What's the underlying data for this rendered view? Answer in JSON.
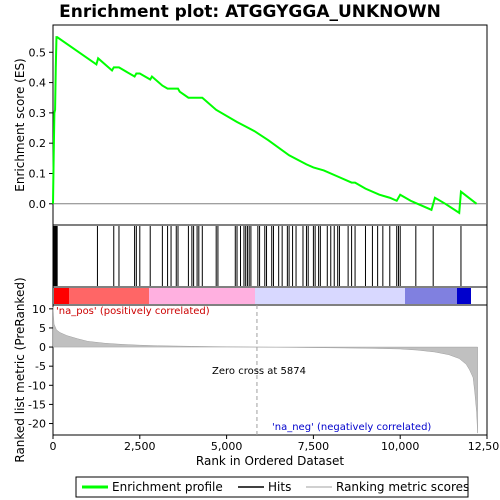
{
  "chart_data": [
    {
      "panel": "enrichment-score",
      "type": "line",
      "title": "Enrichment plot: ATGGYGGA_UNKNOWN",
      "ylabel": "Enrichment score (ES)",
      "xlim": [
        0,
        12500
      ],
      "ylim": [
        -0.07,
        0.59
      ],
      "yticks": [
        0.0,
        0.1,
        0.2,
        0.3,
        0.4,
        0.5
      ],
      "ytick_labels": [
        "0.0",
        "0.1",
        "0.2",
        "0.3",
        "0.4",
        "0.5"
      ],
      "line_color": "#00ff00",
      "series": [
        {
          "name": "Enrichment profile",
          "x": [
            0,
            20,
            40,
            60,
            80,
            100,
            120,
            1250,
            1300,
            1700,
            1750,
            1900,
            2350,
            2400,
            2500,
            2800,
            2850,
            3150,
            3300,
            3600,
            3650,
            3900,
            4100,
            4300,
            4700,
            5300,
            5800,
            6200,
            6800,
            7300,
            7500,
            7800,
            8200,
            8600,
            8700,
            9000,
            9400,
            9700,
            9900,
            10000,
            10300,
            10500,
            10900,
            11000,
            11300,
            11700,
            11750,
            12200
          ],
          "y": [
            0.0,
            0.16,
            0.3,
            0.31,
            0.45,
            0.55,
            0.55,
            0.46,
            0.48,
            0.44,
            0.45,
            0.45,
            0.42,
            0.43,
            0.43,
            0.41,
            0.42,
            0.39,
            0.38,
            0.38,
            0.37,
            0.35,
            0.35,
            0.35,
            0.31,
            0.27,
            0.24,
            0.21,
            0.16,
            0.13,
            0.12,
            0.11,
            0.09,
            0.07,
            0.07,
            0.05,
            0.03,
            0.02,
            0.01,
            0.03,
            0.01,
            0.0,
            -0.02,
            0.02,
            0.0,
            -0.03,
            0.04,
            0.0
          ]
        }
      ]
    },
    {
      "panel": "hits",
      "type": "scatter",
      "series": [
        {
          "name": "Hits",
          "x": [
            20,
            40,
            60,
            80,
            100,
            120,
            1280,
            1750,
            1900,
            2350,
            2400,
            2500,
            2800,
            3150,
            3300,
            3400,
            3550,
            3600,
            3900,
            4000,
            4050,
            4150,
            4200,
            4300,
            4700,
            4750,
            5250,
            5300,
            5400,
            5500,
            5550,
            5600,
            5650,
            5700,
            5900,
            5950,
            6100,
            6150,
            6300,
            6350,
            6500,
            6600,
            6750,
            6800,
            6900,
            7000,
            7200,
            7300,
            7350,
            7500,
            7550,
            7650,
            7700,
            7900,
            8000,
            8100,
            8200,
            8250,
            8500,
            8600,
            8700,
            9000,
            9200,
            9350,
            9500,
            9700,
            9900,
            9950,
            10000,
            10450,
            10950,
            11750
          ]
        }
      ]
    },
    {
      "panel": "ranked-list-metric",
      "type": "area",
      "ylabel": "Ranked list metric (PreRanked)",
      "xlabel": "Rank in Ordered Dataset",
      "xlim": [
        0,
        12500
      ],
      "ylim": [
        -23,
        11
      ],
      "yticks": [
        10,
        5,
        0,
        -5,
        -10,
        -15,
        -20
      ],
      "ytick_labels": [
        "10",
        "5",
        "0",
        "-5",
        "-10",
        "-15",
        "-20"
      ],
      "xticks": [
        0,
        2500,
        5000,
        7500,
        10000,
        12500
      ],
      "xtick_labels": [
        "0",
        "2,500",
        "5,000",
        "7,500",
        "10,000",
        "12,500"
      ],
      "zero_cross": 5874,
      "series": [
        {
          "name": "Ranking metric scores",
          "x": [
            0,
            30,
            100,
            200,
            400,
            700,
            1000,
            1500,
            2000,
            2500,
            3000,
            4000,
            5000,
            5874,
            7000,
            8000,
            9000,
            10000,
            10500,
            11000,
            11400,
            11700,
            11900,
            12000,
            12100,
            12150,
            12200,
            12230
          ],
          "y": [
            10.5,
            6.0,
            4.5,
            3.8,
            3.0,
            2.2,
            1.5,
            1.0,
            0.7,
            0.5,
            0.35,
            0.2,
            0.08,
            0.0,
            -0.1,
            -0.2,
            -0.3,
            -0.5,
            -0.8,
            -1.3,
            -2.0,
            -3.0,
            -4.5,
            -6.0,
            -8.0,
            -12.0,
            -17.0,
            -22.5
          ]
        }
      ]
    }
  ],
  "labels": {
    "title": "Enrichment plot: ATGGYGGA_UNKNOWN",
    "es_ylabel": "Enrichment score (ES)",
    "metric_ylabel": "Ranked list metric (PreRanked)",
    "xlabel": "Rank in Ordered Dataset",
    "na_pos": "'na_pos' (positively correlated)",
    "na_neg": "'na_neg' (negatively correlated)",
    "zero_cross": "Zero cross at 5874"
  },
  "legend": {
    "items": [
      {
        "label": "Enrichment profile",
        "color": "#00ff00"
      },
      {
        "label": "Hits",
        "color": "#000000"
      },
      {
        "label": "Ranking metric scores",
        "color": "#c0c0c0"
      }
    ]
  },
  "colors": {
    "es_line": "#00ff00",
    "hits": "#000000",
    "metric_fill": "#c0c0c0",
    "pos_label": "#cc0000",
    "neg_label": "#0000cc",
    "bar_red": "#ff0000",
    "bar_pink": "#ffb0e0",
    "bar_lavender": "#d8d8ff",
    "bar_blue": "#0000cc"
  }
}
